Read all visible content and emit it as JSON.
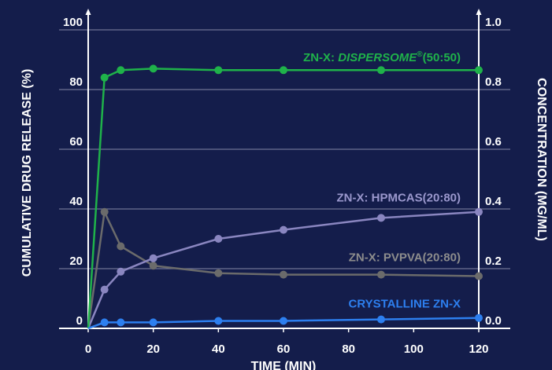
{
  "chart_data": {
    "type": "line",
    "xlabel": "TIME (MIN)",
    "ylabel_left": "CUMULATIVE DRUG RELEASE (%)",
    "ylabel_right": "CONCENTRATION (MG/ML)",
    "xlim": [
      0,
      120
    ],
    "ylim_left": [
      0,
      100
    ],
    "ylim_right": [
      0,
      1.0
    ],
    "x_ticks": [
      "0",
      "20",
      "40",
      "60",
      "80",
      "100",
      "120"
    ],
    "y_ticks_left": [
      "0",
      "20",
      "40",
      "60",
      "80",
      "100"
    ],
    "y_ticks_right": [
      "0.0",
      "0.2",
      "0.4",
      "0.6",
      "0.8",
      "1.0"
    ],
    "grid": true,
    "series": [
      {
        "name": "ZN-X: DISPERSOME®(50:50)",
        "name_prefix": "ZN-X: ",
        "name_italic": "DISPERSOME",
        "name_super": "®",
        "name_suffix": "(50:50)",
        "color": "#1fb24a",
        "x": [
          0,
          5,
          10,
          20,
          40,
          60,
          90,
          120
        ],
        "y": [
          0,
          84,
          86.5,
          87,
          86.5,
          86.5,
          86.5,
          86.5
        ]
      },
      {
        "name": "ZN-X: HPMCAS(20:80)",
        "color": "#8a86c0",
        "x": [
          0,
          5,
          10,
          20,
          40,
          60,
          90,
          120
        ],
        "y": [
          0,
          13,
          19,
          23.5,
          30,
          33,
          37,
          39
        ]
      },
      {
        "name": "ZN-X: PVPVA(20:80)",
        "color": "#6b6b6b",
        "x": [
          0,
          5,
          10,
          20,
          40,
          60,
          90,
          120
        ],
        "y": [
          0,
          39,
          27.5,
          21,
          18.5,
          18,
          18,
          17.5
        ]
      },
      {
        "name": "CRYSTALLINE ZN-X",
        "color": "#2d7fef",
        "x": [
          0,
          5,
          10,
          20,
          40,
          60,
          90,
          120
        ],
        "y": [
          0,
          2,
          2,
          2,
          2.5,
          2.5,
          3,
          3.5
        ]
      }
    ]
  }
}
